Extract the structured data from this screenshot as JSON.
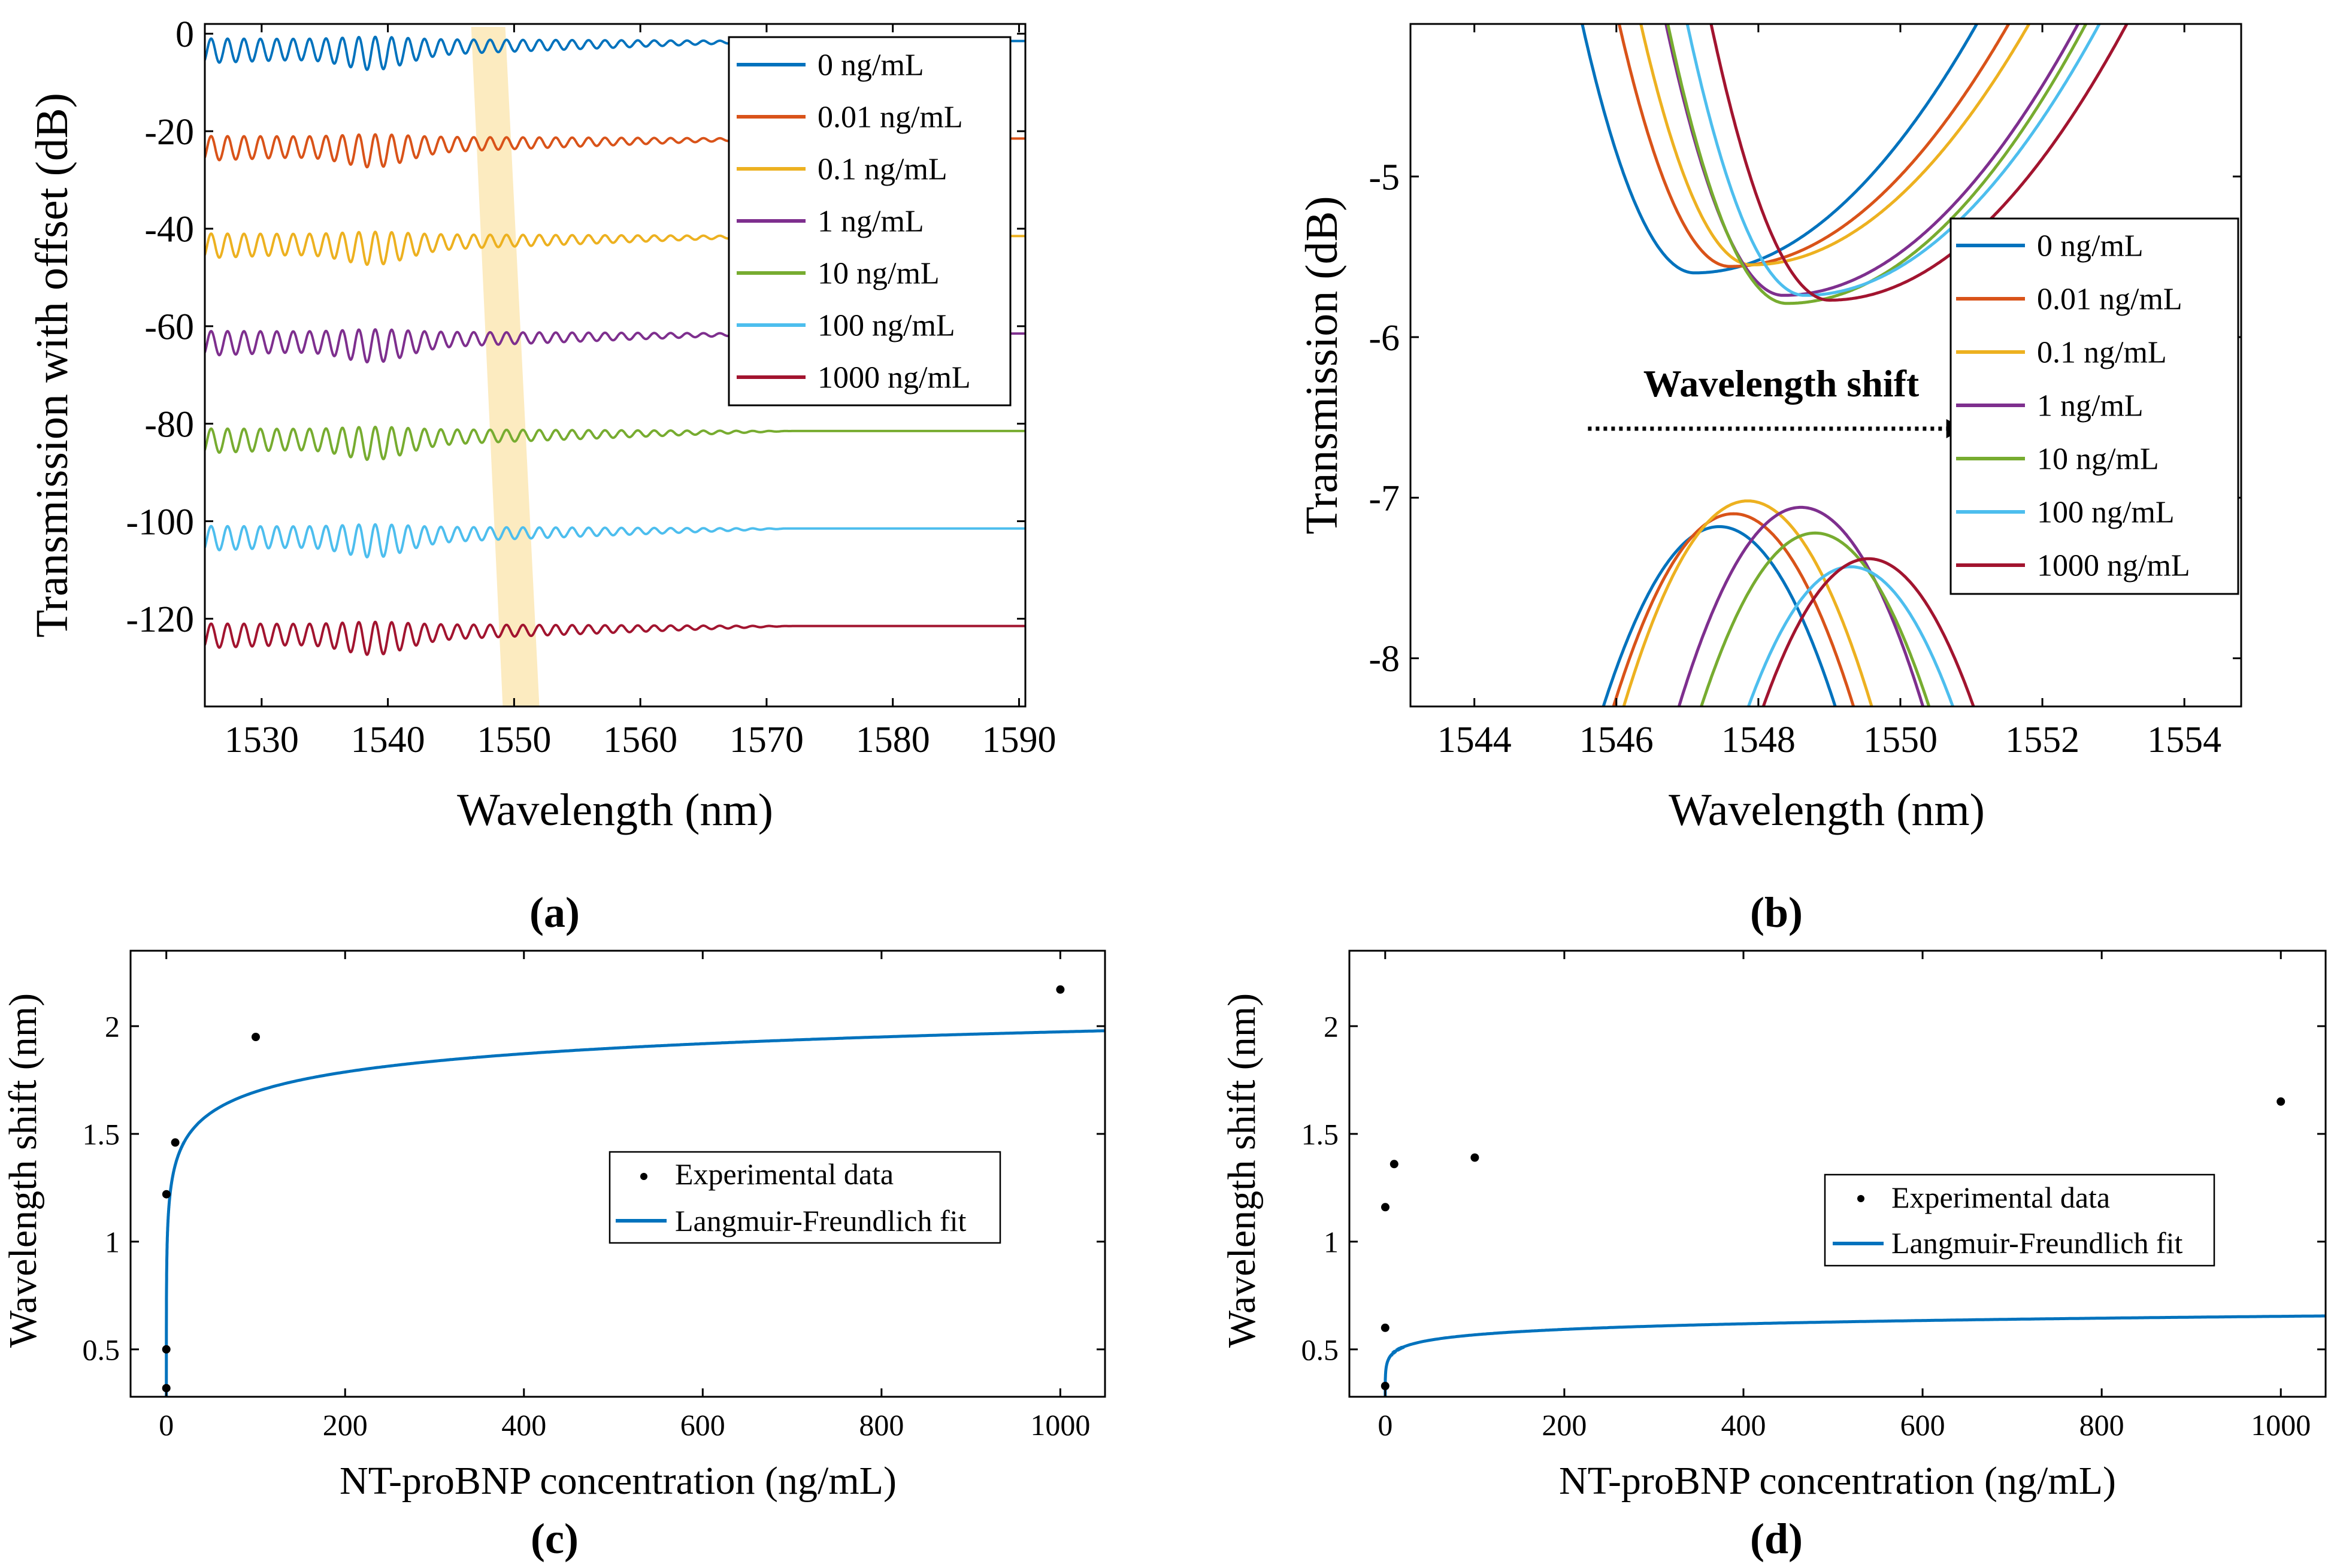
{
  "colors": [
    "#0072BD",
    "#D95319",
    "#EDB120",
    "#7E2F8E",
    "#77AC30",
    "#4DBEEE",
    "#A2142F"
  ],
  "highlight_color": "#FBE7B5",
  "chart_data": [
    {
      "id": "a",
      "panel_label": "(a)",
      "type": "line",
      "xlabel": "Wavelength (nm)",
      "ylabel": "Transmission with offset (dB)",
      "xlim": [
        1525.5,
        1590.5
      ],
      "ylim": [
        -138,
        2
      ],
      "xticks": [
        1530,
        1540,
        1550,
        1560,
        1570,
        1580,
        1590
      ],
      "yticks": [
        0,
        -20,
        -40,
        -60,
        -80,
        -100,
        -120
      ],
      "series": [
        {
          "name": "0 ng/mL",
          "offset": 0
        },
        {
          "name": "0.01 ng/mL",
          "offset": -20
        },
        {
          "name": "0.1 ng/mL",
          "offset": -40
        },
        {
          "name": "1 ng/mL",
          "offset": -60
        },
        {
          "name": "10 ng/mL",
          "offset": -80
        },
        {
          "name": "100 ng/mL",
          "offset": -100
        },
        {
          "name": "1000 ng/mL",
          "offset": -120
        }
      ],
      "fringe_period_nm": 1.3,
      "highlight_band": [
        1547.5,
        1551.5
      ],
      "legend": "top-right"
    },
    {
      "id": "b",
      "panel_label": "(b)",
      "type": "line",
      "xlabel": "Wavelength (nm)",
      "ylabel": "Transmission (dB)",
      "xlim": [
        1543.1,
        1554.8
      ],
      "ylim": [
        -8.3,
        -4.05
      ],
      "xticks": [
        1544,
        1546,
        1548,
        1550,
        1552,
        1554
      ],
      "yticks": [
        -5,
        -6,
        -7,
        -8
      ],
      "series": [
        {
          "name": "0 ng/mL",
          "dip_x": 1547.1,
          "dip_y": -5.6,
          "peak_x": 1547.45,
          "peak_y": -7.18
        },
        {
          "name": "0.01 ng/mL",
          "dip_x": 1547.6,
          "dip_y": -5.56,
          "peak_x": 1547.65,
          "peak_y": -7.1
        },
        {
          "name": "0.1 ng/mL",
          "dip_x": 1547.9,
          "dip_y": -5.55,
          "peak_x": 1547.85,
          "peak_y": -7.02
        },
        {
          "name": "1 ng/mL",
          "dip_x": 1548.35,
          "dip_y": -5.74,
          "peak_x": 1548.6,
          "peak_y": -7.06
        },
        {
          "name": "10 ng/mL",
          "dip_x": 1548.4,
          "dip_y": -5.79,
          "peak_x": 1548.8,
          "peak_y": -7.22
        },
        {
          "name": "100 ng/mL",
          "dip_x": 1548.65,
          "dip_y": -5.74,
          "peak_x": 1549.3,
          "peak_y": -7.43
        },
        {
          "name": "1000 ng/mL",
          "dip_x": 1549.0,
          "dip_y": -5.77,
          "peak_x": 1549.55,
          "peak_y": -7.38
        }
      ],
      "annotation": "Wavelength shift",
      "annotation_arrow_x": [
        1545.6,
        1550.9
      ],
      "annotation_arrow_y": -6.57,
      "legend": "right"
    },
    {
      "id": "c",
      "panel_label": "(c)",
      "type": "scatter",
      "xlabel": "NT-proBNP concentration (ng/mL)",
      "ylabel": "Wavelength shift (nm)",
      "xlim": [
        -40,
        1050
      ],
      "ylim": [
        0.28,
        2.35
      ],
      "xticks": [
        0,
        200,
        400,
        600,
        800,
        1000
      ],
      "yticks": [
        0.5,
        1,
        1.5,
        2
      ],
      "points": [
        [
          0,
          0.32
        ],
        [
          0.01,
          0.5
        ],
        [
          0.1,
          1.22
        ],
        [
          10,
          1.46
        ],
        [
          100,
          1.95
        ],
        [
          1000,
          2.17
        ]
      ],
      "fit": {
        "a": 2.5,
        "b": 1.5,
        "n": 0.25
      },
      "legend_entries": [
        "Experimental data",
        "Langmuir-Freundlich fit"
      ],
      "legend": "center-right"
    },
    {
      "id": "d",
      "panel_label": "(d)",
      "type": "scatter",
      "xlabel": "NT-proBNP concentration (ng/mL)",
      "ylabel": "Wavelength shift (nm)",
      "xlim": [
        -40,
        1050
      ],
      "ylim": [
        0.28,
        2.35
      ],
      "xticks": [
        0,
        200,
        400,
        600,
        800,
        1000
      ],
      "yticks": [
        0.5,
        1,
        1.5,
        2
      ],
      "points": [
        [
          0,
          0.33
        ],
        [
          0.01,
          0.6
        ],
        [
          0.1,
          1.16
        ],
        [
          10,
          1.36
        ],
        [
          100,
          1.39
        ],
        [
          1000,
          1.65
        ]
      ],
      "fit": {
        "a": 1.57,
        "b": 2.8,
        "n": 0.1
      },
      "legend_entries": [
        "Experimental data",
        "Langmuir-Freundlich fit"
      ],
      "legend": "center-right"
    }
  ]
}
